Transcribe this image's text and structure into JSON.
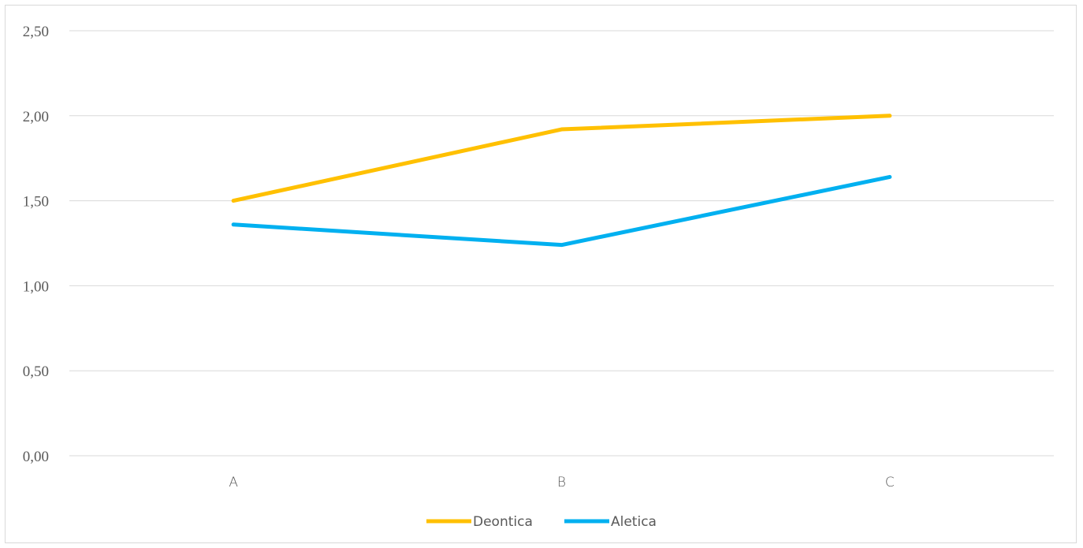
{
  "chart_data": {
    "type": "line",
    "title": "",
    "xlabel": "",
    "ylabel": "",
    "categories": [
      "A",
      "B",
      "C"
    ],
    "y_ticks": [
      "0,00",
      "0,50",
      "1,00",
      "1,50",
      "2,00",
      "2,50"
    ],
    "ylim": [
      0,
      2.5
    ],
    "grid": true,
    "legend_position": "bottom",
    "series": [
      {
        "name": "Deontica",
        "color": "#FFC000",
        "values": [
          1.5,
          1.92,
          2.0
        ]
      },
      {
        "name": "Aletica",
        "color": "#00B0F0",
        "values": [
          1.36,
          1.24,
          1.64
        ]
      }
    ]
  }
}
